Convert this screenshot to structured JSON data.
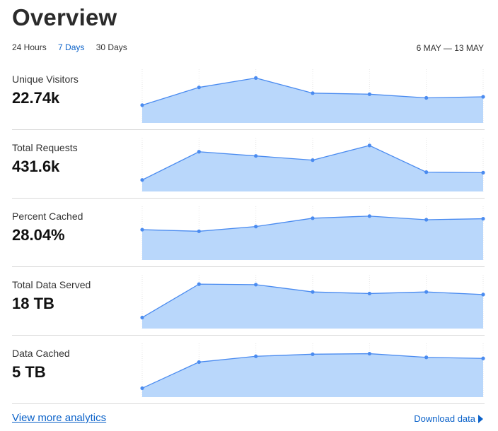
{
  "page": {
    "title": "Overview"
  },
  "time_tabs": [
    {
      "label": "24 Hours",
      "active": false
    },
    {
      "label": "7 Days",
      "active": true
    },
    {
      "label": "30 Days",
      "active": false
    }
  ],
  "date_range": "6 MAY — 13 MAY",
  "colors": {
    "accent": "#0b62c9",
    "line": "#4a8bf0",
    "fill": "#b9d7fb",
    "divider": "#d9d9d9"
  },
  "metrics": [
    {
      "label": "Unique Visitors",
      "value": "22.74k"
    },
    {
      "label": "Total Requests",
      "value": "431.6k"
    },
    {
      "label": "Percent Cached",
      "value": "28.04%"
    },
    {
      "label": "Total Data Served",
      "value": "18 TB"
    },
    {
      "label": "Data Cached",
      "value": "5 TB"
    }
  ],
  "chart_data": [
    {
      "type": "area",
      "series": [
        {
          "values": [
            34,
            68,
            86,
            57,
            55,
            48,
            50
          ]
        }
      ],
      "ylim": [
        0,
        100
      ]
    },
    {
      "type": "area",
      "series": [
        {
          "values": [
            22,
            76,
            68,
            60,
            88,
            37,
            36
          ]
        }
      ],
      "ylim": [
        0,
        100
      ]
    },
    {
      "type": "area",
      "series": [
        {
          "values": [
            58,
            55,
            64,
            80,
            84,
            77,
            79
          ]
        }
      ],
      "ylim": [
        0,
        100
      ]
    },
    {
      "type": "area",
      "series": [
        {
          "values": [
            21,
            85,
            84,
            70,
            67,
            70,
            65
          ]
        }
      ],
      "ylim": [
        0,
        100
      ]
    },
    {
      "type": "area",
      "series": [
        {
          "values": [
            17,
            67,
            78,
            82,
            83,
            76,
            74
          ]
        }
      ],
      "ylim": [
        0,
        100
      ]
    }
  ],
  "footer": {
    "link_label": "View more analytics",
    "download_label": "Download data"
  },
  "icons": {
    "download": "play-triangle-icon"
  }
}
